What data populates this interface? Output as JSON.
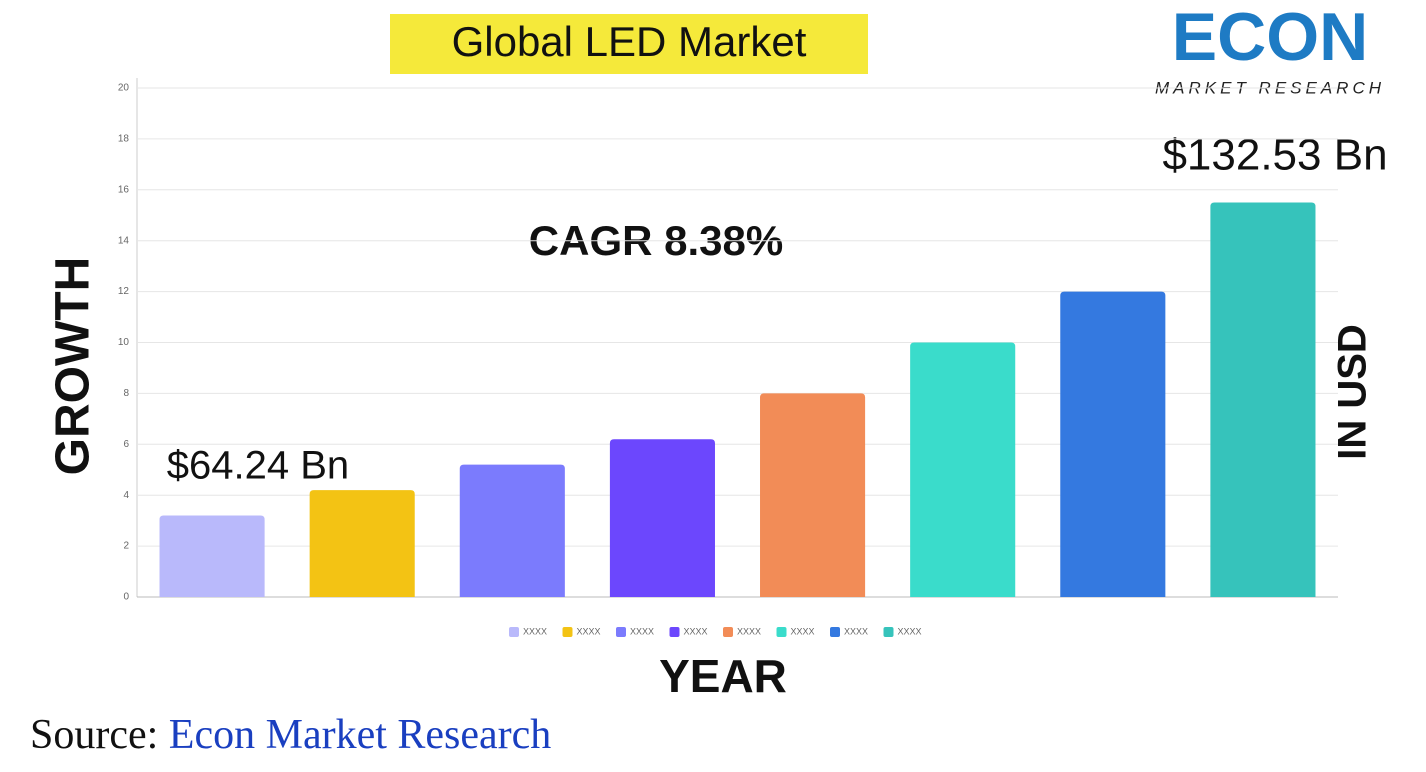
{
  "chart_data": {
    "type": "bar",
    "title": "Global LED Market",
    "logo": {
      "brand": "ECON",
      "tagline": "MARKET RESEARCH"
    },
    "y_label": "GROWTH",
    "y2_label": "IN USD",
    "x_label": "YEAR",
    "annotations": {
      "start": "$64.24 Bn",
      "end": "$132.53 Bn",
      "cagr": "CAGR 8.38%"
    },
    "source": {
      "prefix": "Source:",
      "name": "Econ Market Research"
    },
    "series": [
      {
        "name": "XXXX",
        "color": "#b9b9fb",
        "values": [
          3.2
        ]
      },
      {
        "name": "XXXX",
        "color": "#f3c314",
        "values": [
          4.2
        ]
      },
      {
        "name": "XXXX",
        "color": "#7b7bfd",
        "values": [
          5.2
        ]
      },
      {
        "name": "XXXX",
        "color": "#6c47fd",
        "values": [
          6.2
        ]
      },
      {
        "name": "XXXX",
        "color": "#f28c57",
        "values": [
          8
        ]
      },
      {
        "name": "XXXX",
        "color": "#3adccb",
        "values": [
          10
        ]
      },
      {
        "name": "XXXX",
        "color": "#3479e0",
        "values": [
          12
        ]
      },
      {
        "name": "XXXX",
        "color": "#36c3bb",
        "values": [
          15.5
        ]
      }
    ],
    "ylim": [
      0,
      20
    ],
    "yticks": [
      0,
      2,
      4,
      6,
      8,
      10,
      12,
      14,
      16,
      18,
      20
    ],
    "grid": true
  }
}
